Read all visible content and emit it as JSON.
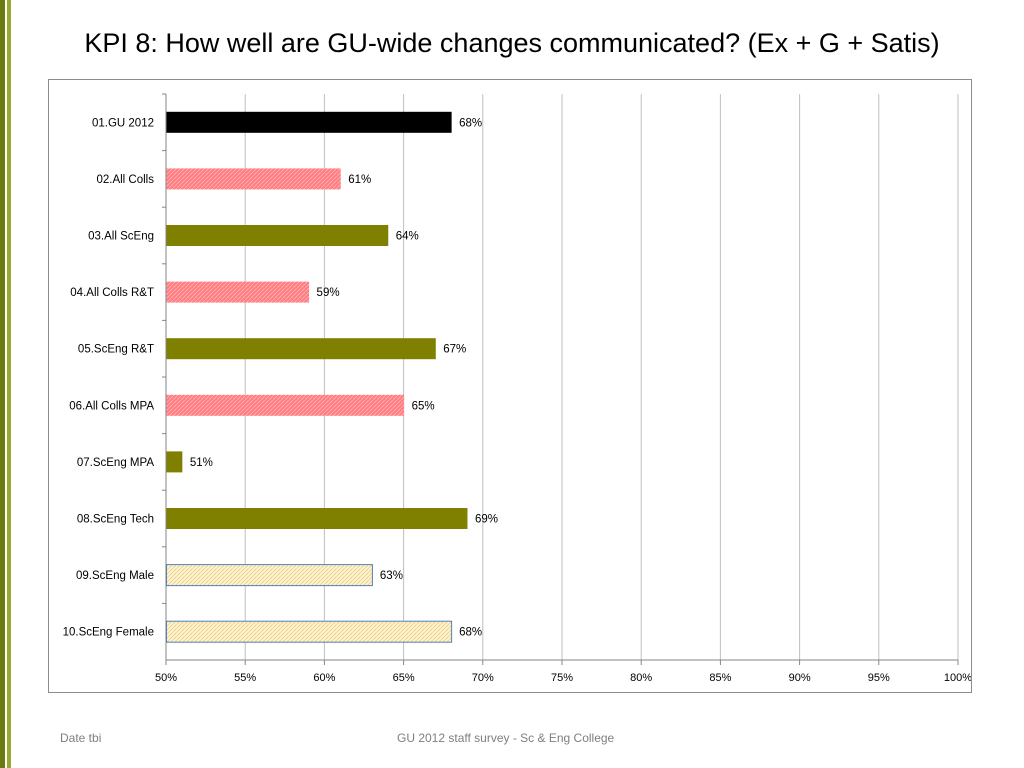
{
  "slide": {
    "title": "KPI 8: How well are GU-wide changes communicated? (Ex + G + Satis)",
    "footer_left": "Date tbi",
    "footer_center": "GU 2012 staff survey -  Sc & Eng College"
  },
  "colors": {
    "stripe_dark": "#6b7b12",
    "stripe_light": "#9aa833",
    "bar_black": "#000000",
    "bar_pink": "#ff7c80",
    "bar_olive": "#7f7f00",
    "bar_cream": "#fff2cc",
    "bar_cream_border": "#4f81bd",
    "gridline": "#bfbfbf"
  },
  "chart_data": {
    "type": "bar",
    "orientation": "horizontal",
    "categories": [
      "01.GU 2012",
      "02.All Colls",
      "03.All ScEng",
      "04.All Colls R&T",
      "05.ScEng R&T",
      "06.All Colls MPA",
      "07.ScEng MPA",
      "08.ScEng Tech",
      "09.ScEng Male",
      "10.ScEng Female"
    ],
    "values": [
      68,
      61,
      64,
      59,
      67,
      65,
      51,
      69,
      63,
      68
    ],
    "value_labels": [
      "68%",
      "61%",
      "64%",
      "59%",
      "67%",
      "65%",
      "51%",
      "69%",
      "63%",
      "68%"
    ],
    "bar_styles": [
      "black",
      "pink",
      "olive",
      "pink",
      "olive",
      "pink",
      "olive",
      "olive",
      "cream",
      "cream"
    ],
    "xlim": [
      50,
      100
    ],
    "xticks": [
      50,
      55,
      60,
      65,
      70,
      75,
      80,
      85,
      90,
      95,
      100
    ],
    "xtick_labels": [
      "50%",
      "55%",
      "60%",
      "65%",
      "70%",
      "75%",
      "80%",
      "85%",
      "90%",
      "95%",
      "100%"
    ],
    "grid": "vertical",
    "legend": "none"
  }
}
